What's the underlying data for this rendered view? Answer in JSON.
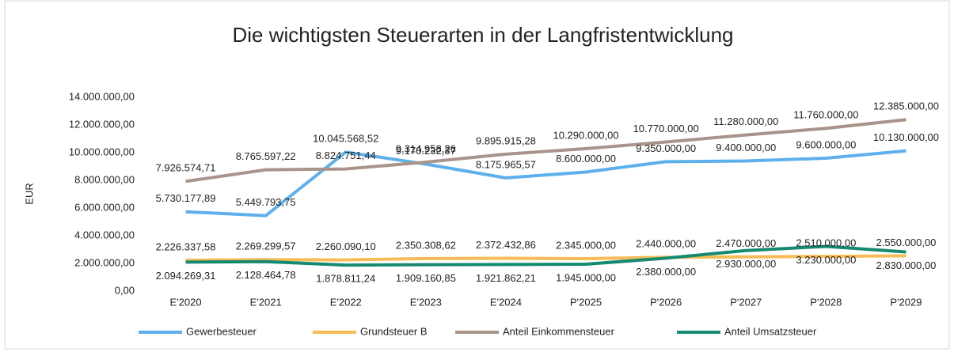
{
  "chart_data": {
    "type": "line",
    "title": "Die wichtigsten Steuerarten in der Langfristentwicklung",
    "y_label": "EUR",
    "categories": [
      "E'2020",
      "E'2021",
      "E'2022",
      "E'2023",
      "E'2024",
      "P'2025",
      "P'2026",
      "P'2027",
      "P'2028",
      "P'2029"
    ],
    "ylim": [
      0,
      14000000
    ],
    "yticks": [
      {
        "value": 0,
        "label": "0,00"
      },
      {
        "value": 2000000,
        "label": "2.000.000,00"
      },
      {
        "value": 4000000,
        "label": "4.000.000,00"
      },
      {
        "value": 6000000,
        "label": "6.000.000,00"
      },
      {
        "value": 8000000,
        "label": "8.000.000,00"
      },
      {
        "value": 10000000,
        "label": "10.000.000,00"
      },
      {
        "value": 12000000,
        "label": "12.000.000,00"
      },
      {
        "value": 14000000,
        "label": "14.000.000,00"
      }
    ],
    "legend": "bottom",
    "series": [
      {
        "name": "Gewerbesteuer",
        "color": "#5eb0ec",
        "values": [
          5730177.89,
          5449793.75,
          10045568.52,
          9170232.37,
          8175965.57,
          8600000,
          9350000,
          9400000,
          9600000,
          10130000
        ],
        "value_labels": [
          "5.730.177,89",
          "5.449.793,75",
          "10.045.568,52",
          "9.170.232,37",
          "8.175.965,57",
          "8.600.000,00",
          "9.350.000,00",
          "9.400.000,00",
          "9.600.000,00",
          "10.130.000,00"
        ]
      },
      {
        "name": "Grundsteuer B",
        "color": "#f7bc57",
        "values": [
          2226337.58,
          2269299.57,
          2260090.1,
          2350308.62,
          2372432.86,
          2345000,
          2440000,
          2470000,
          2510000,
          2550000
        ],
        "value_labels": [
          "2.226.337,58",
          "2.269.299,57",
          "2.260.090,10",
          "2.350.308,62",
          "2.372.432,86",
          "2.345.000,00",
          "2.440.000,00",
          "2.470.000,00",
          "2.510.000,00",
          "2.550.000,00"
        ]
      },
      {
        "name": "Anteil Einkommensteuer",
        "color": "#a8948a",
        "values": [
          7926574.71,
          8765597.22,
          8824751.44,
          9314958.26,
          9895915.28,
          10290000,
          10770000,
          11280000,
          11760000,
          12385000
        ],
        "value_labels": [
          "7.926.574,71",
          "8.765.597,22",
          "8.824.751,44",
          "9.314.958,26",
          "9.895.915,28",
          "10.290.000,00",
          "10.770.000,00",
          "11.280.000,00",
          "11.760.000,00",
          "12.385.000,00"
        ]
      },
      {
        "name": "Anteil Umsatzsteuer",
        "color": "#158a70",
        "values": [
          2094269.31,
          2128464.78,
          1878811.24,
          1909160.85,
          1921862.21,
          1945000,
          2380000,
          2930000,
          3230000,
          2830000
        ],
        "value_labels": [
          "2.094.269,31",
          "2.128.464,78",
          "1.878.811,24",
          "1.909.160,85",
          "1.921.862,21",
          "1.945.000,00",
          "2.380.000,00",
          "2.930.000,00",
          "3.230.000,00",
          "2.830.000,00"
        ]
      }
    ]
  }
}
